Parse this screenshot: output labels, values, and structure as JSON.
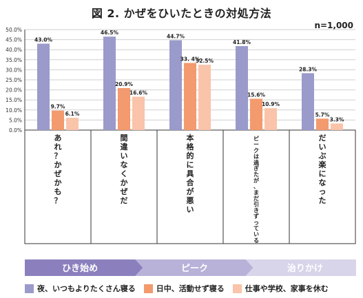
{
  "title": "図 2. かぜをひいたときの対処方法",
  "sample_size": "n=1,000",
  "colors": {
    "series1": "#9a9acb",
    "series2": "#f39a6e",
    "series3": "#f9c4a9",
    "phase_dark": "#8b80bd",
    "phase_mid": "#b8b2d9",
    "phase_light": "#d8d4ea",
    "grid": "#cfcfcf",
    "axis": "#333333"
  },
  "chart_data": {
    "type": "bar",
    "title": "図 2. かぜをひいたときの対処方法",
    "categories": [
      "あれ？かぜかも？",
      "間違いなくかぜだ",
      "本格的に具合が悪い",
      "ピークは過ぎたが、まだ引きずっている",
      "だいぶ楽になった"
    ],
    "series": [
      {
        "name": "夜、いつもよりたくさん寝る",
        "values": [
          43.0,
          46.5,
          44.7,
          41.8,
          28.3
        ],
        "labels": [
          "43.0%",
          "46.5%",
          "44.7%",
          "41.8%",
          "28.3%"
        ]
      },
      {
        "name": "日中、活動せず寝る",
        "values": [
          9.7,
          20.9,
          33.4,
          15.6,
          5.7
        ],
        "labels": [
          "9.7%",
          "20.9%",
          "33. 4%",
          "15.6%",
          "5.7%"
        ]
      },
      {
        "name": "仕事や学校、家事を休む",
        "values": [
          6.1,
          16.6,
          32.5,
          10.9,
          3.3
        ],
        "labels": [
          "6.1%",
          "16.6%",
          "32.5%",
          "10.9%",
          "3.3%"
        ]
      }
    ],
    "y_ticks": [
      "0.0%",
      "5.0%",
      "10.0%",
      "15.0%",
      "20.0%",
      "25.0%",
      "30.0%",
      "35.0%",
      "40.0%",
      "45.0%",
      "50.0%"
    ],
    "ylim": [
      0,
      50
    ],
    "grid": true,
    "legend": "bottom",
    "phases": [
      "ひき始め",
      "ピーク",
      "治りかけ"
    ]
  }
}
